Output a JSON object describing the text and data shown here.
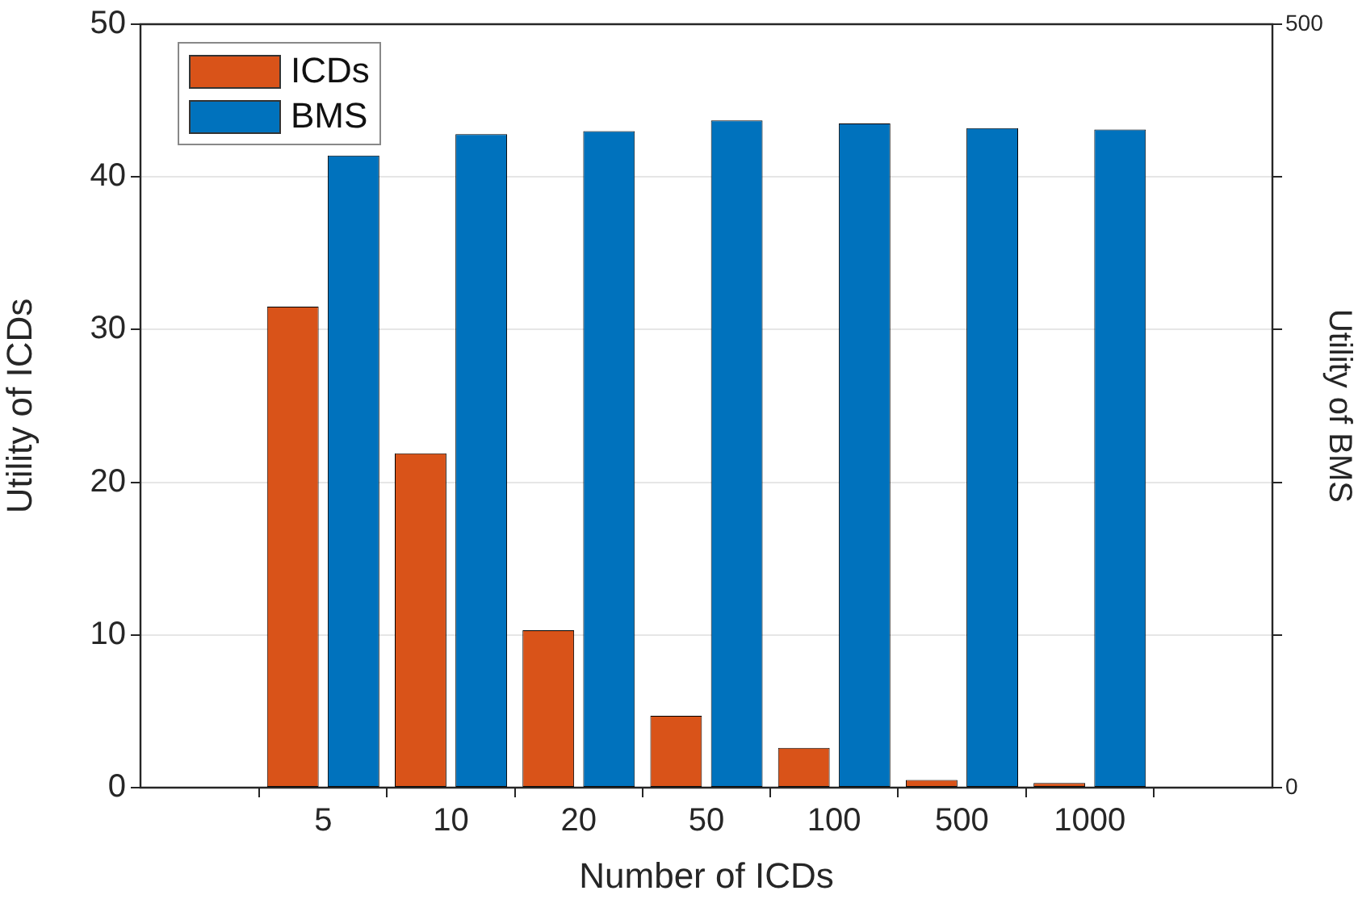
{
  "chart_data": {
    "type": "bar",
    "xlabel": "Number of ICDs",
    "ylabel": "Utility of ICDs",
    "y2label": "Utility of BMS",
    "categories": [
      "5",
      "10",
      "20",
      "50",
      "100",
      "500",
      "1000"
    ],
    "series": [
      {
        "name": "ICDs",
        "color": "#d95319",
        "values": [
          31.5,
          21.9,
          10.3,
          4.7,
          2.6,
          0.5,
          0.3
        ]
      },
      {
        "name": "BMS",
        "color": "#0072bd",
        "axis": "y2",
        "values": [
          414,
          428,
          430,
          437,
          435,
          432,
          431
        ]
      }
    ],
    "ylim": [
      0,
      50
    ],
    "yticks": [
      0,
      10,
      20,
      30,
      40,
      50
    ],
    "y2lim": [
      0,
      500
    ],
    "y2ticks": [
      0,
      {
        "value": 100,
        "label": null
      },
      {
        "value": 200,
        "label": null
      },
      {
        "value": 300,
        "label": null
      },
      {
        "value": 400,
        "label": null
      },
      500
    ],
    "grid": "y",
    "legend": "top left"
  }
}
